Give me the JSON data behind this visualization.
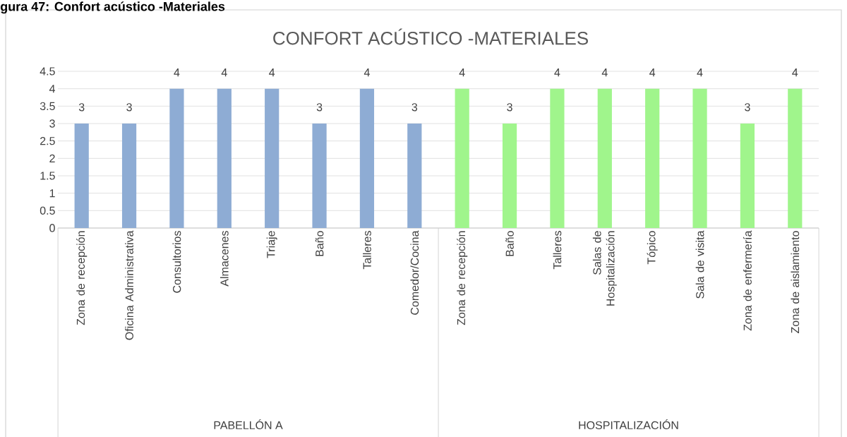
{
  "chart_data": {
    "type": "bar",
    "title": "CONFORT ACÚSTICO -MATERIALES",
    "categories": [
      "Zona de recepción",
      "Oficina Administrativa",
      "Consultorios",
      "Almacenes",
      "Triaje",
      "Baño",
      "Talleres",
      "Comedor/Cocina",
      "Zona de recepción",
      "Baño",
      "Talleres",
      "Salas de Hospitalización",
      "Tópico",
      "Sala de visita",
      "Zona de enfermería",
      "Zona de aislamiento"
    ],
    "values": [
      3,
      3,
      4,
      4,
      4,
      3,
      4,
      3,
      4,
      3,
      4,
      4,
      4,
      4,
      3,
      4
    ],
    "colors": [
      "#8eacd4",
      "#8eacd4",
      "#8eacd4",
      "#8eacd4",
      "#8eacd4",
      "#8eacd4",
      "#8eacd4",
      "#8eacd4",
      "#a0f58c",
      "#a0f58c",
      "#a0f58c",
      "#a0f58c",
      "#a0f58c",
      "#a0f58c",
      "#a0f58c",
      "#a0f58c"
    ],
    "ylim": [
      0,
      4.5
    ],
    "yticks": [
      0,
      0.5,
      1,
      1.5,
      2,
      2.5,
      3,
      3.5,
      4,
      4.5
    ],
    "grid": "y",
    "data_labels": true,
    "annotations": [
      "gura 47: Confort acústico -Materiales",
      "PABELLÓN A",
      "HOSPITALIZACIÓN"
    ]
  }
}
